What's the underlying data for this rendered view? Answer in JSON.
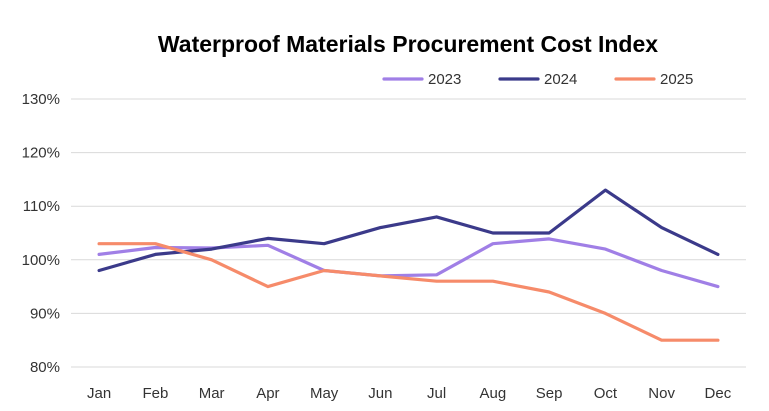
{
  "chart_data": {
    "type": "line",
    "title": "Waterproof Materials Procurement Cost Index",
    "xlabel": "",
    "ylabel": "",
    "categories": [
      "Jan",
      "Feb",
      "Mar",
      "Apr",
      "May",
      "Jun",
      "Jul",
      "Aug",
      "Sep",
      "Oct",
      "Nov",
      "Dec"
    ],
    "ylim": [
      80,
      130
    ],
    "yticks": [
      80,
      90,
      100,
      110,
      120,
      130
    ],
    "ytick_labels": [
      "80%",
      "90%",
      "100%",
      "110%",
      "120%",
      "130%"
    ],
    "grid": true,
    "legend_position": "top",
    "series": [
      {
        "name": "2023",
        "color": "#a07fe6",
        "values": [
          101,
          102.3,
          102.2,
          102.7,
          98,
          97,
          97.2,
          103,
          103.9,
          102,
          98,
          95
        ]
      },
      {
        "name": "2024",
        "color": "#3b3a8a",
        "values": [
          98,
          101,
          102,
          104,
          103,
          106,
          108,
          105,
          105,
          113,
          106,
          101
        ]
      },
      {
        "name": "2025",
        "color": "#f68b6a",
        "values": [
          103,
          103,
          100,
          95,
          98,
          97,
          96,
          96,
          94,
          90,
          85,
          85
        ]
      }
    ]
  }
}
